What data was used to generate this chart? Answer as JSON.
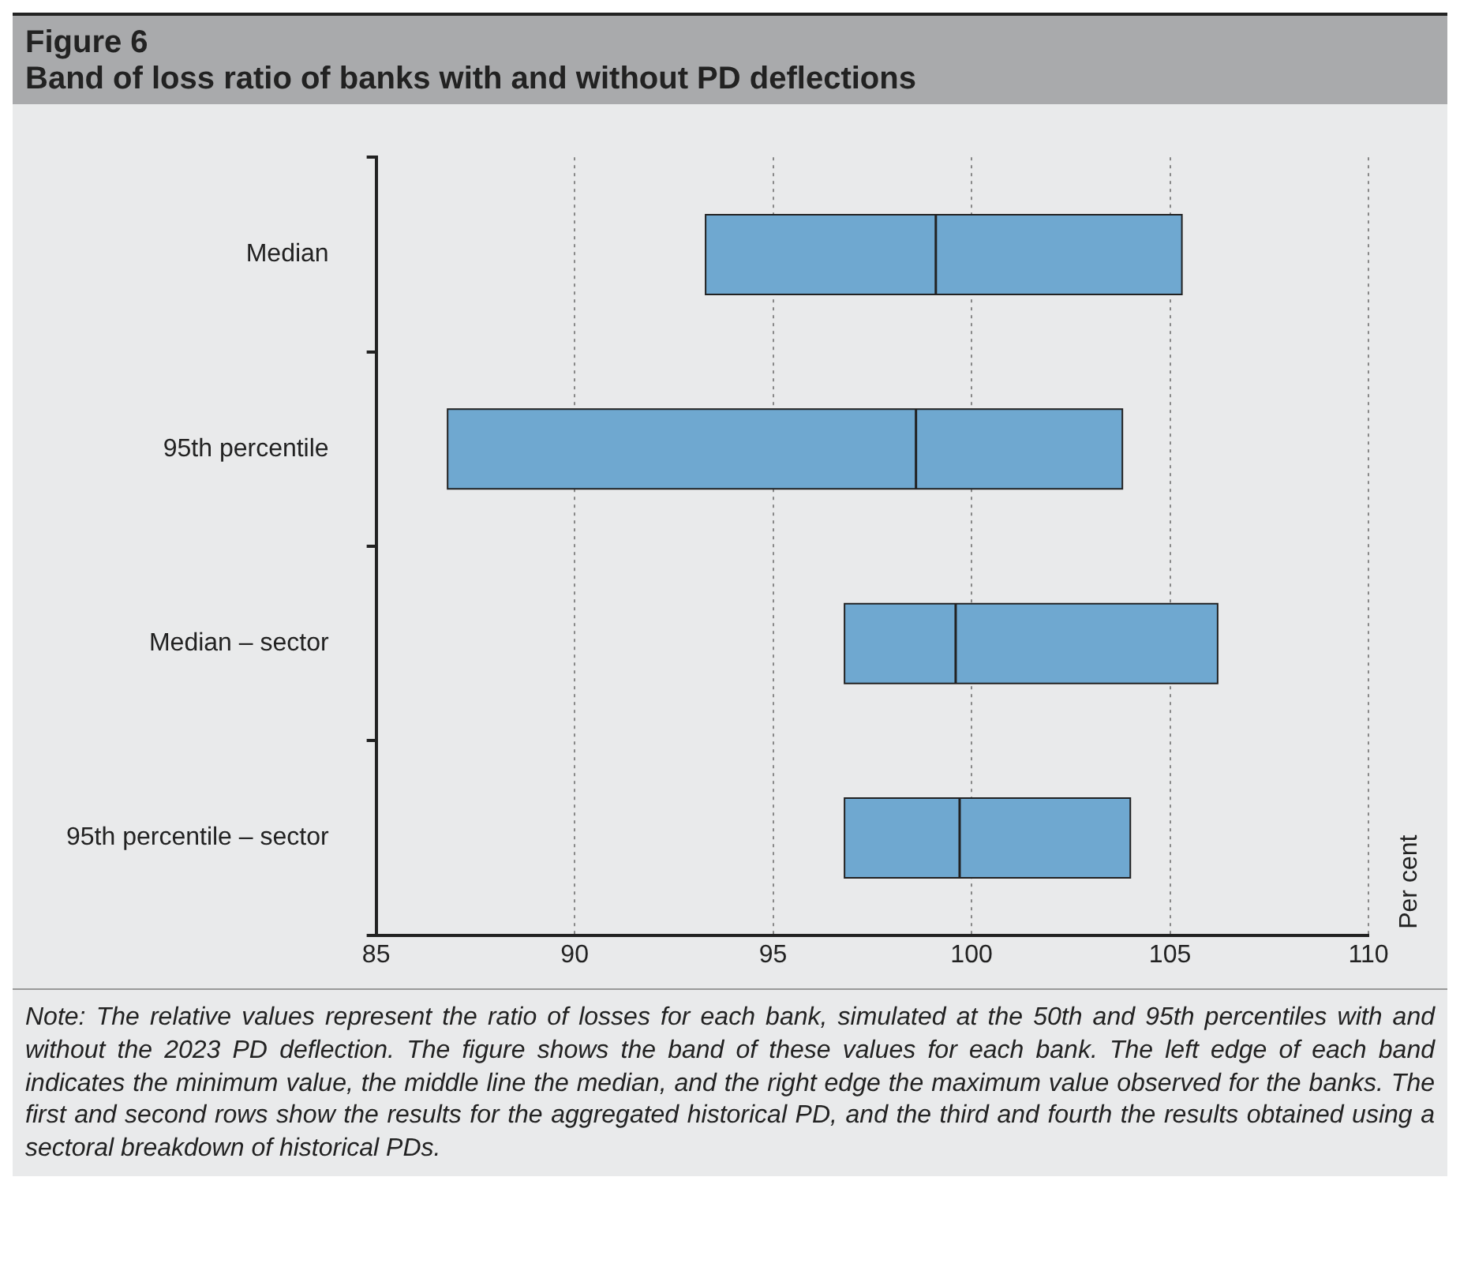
{
  "chart_data": {
    "type": "box",
    "orientation": "horizontal",
    "title": "Figure 6",
    "subtitle": "Band of loss ratio of banks with and without PD deflections",
    "categories": [
      "Median",
      "95th percentile",
      "Median – sector",
      "95th percentile – sector"
    ],
    "color": "#6fa8d0",
    "boxes": [
      {
        "low": 93.3,
        "q1": 93.3,
        "median": 99.1,
        "q3": 105.3,
        "high": 105.3
      },
      {
        "low": 86.8,
        "q1": 86.8,
        "median": 98.6,
        "q3": 103.8,
        "high": 103.8
      },
      {
        "low": 96.8,
        "q1": 96.8,
        "median": 99.6,
        "q3": 106.2,
        "high": 106.2
      },
      {
        "low": 96.8,
        "q1": 96.8,
        "median": 99.7,
        "q3": 104.0,
        "high": 104.0
      }
    ],
    "xlim": [
      85,
      110
    ],
    "xticks": [
      85,
      90,
      95,
      100,
      105,
      110
    ],
    "grid": "x",
    "line_style": "dotted",
    "legend": false,
    "annotations": [
      "Per cent",
      "Note: The relative values represent the ratio of losses for each bank, simulated at the 50th and 95th percentiles with and without the 2023 PD deflection. The figure shows the band of these values for each bank. The left edge of each band indicates the minimum value, the middle line the median, and the right edge the maximum value observed for the banks. The first and second rows show the results for the aggregated historical PD, and the third and fourth the results obtained using a sectoral breakdown of historical PDs."
    ]
  }
}
